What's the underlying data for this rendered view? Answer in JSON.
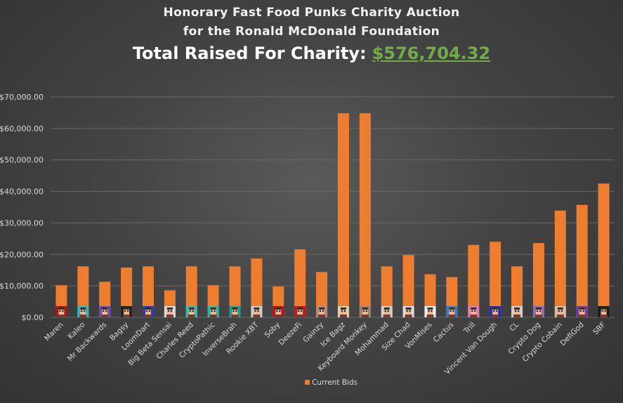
{
  "header": {
    "title_line1": "Honorary Fast Food Punks Charity Auction",
    "title_line2": "for the Ronald McDonald Foundation",
    "total_label": "Total Raised For Charity:",
    "total_amount": "$576,704.32"
  },
  "colors": {
    "bar": "#ed7d31",
    "total_amount": "#70ad47",
    "gridline": "#6a6a6a",
    "text": "#d9d9d9"
  },
  "chart_data": {
    "type": "bar",
    "categories": [
      "Maren",
      "Kaleo",
      "Mr Backwards",
      "Bagsy",
      "LoomDart",
      "Big Beta Sensai",
      "Charles Reed",
      "CryptoPathic",
      "InverseBrah",
      "Rookie XBT",
      "Soby",
      "DeezeFi",
      "Gainzy",
      "Ice Bagz",
      "Keyboard Monkey",
      "Mohammad",
      "Size Chad",
      "VonMises",
      "Cactus",
      "Trill",
      "Vincent Van Dough",
      "CL",
      "Crypto Dog",
      "Crypto Cobain",
      "DefiGod",
      "SBF"
    ],
    "series": [
      {
        "name": "Current Bids",
        "values": [
          10200,
          16200,
          11300,
          15800,
          16200,
          8600,
          16200,
          10200,
          16200,
          18700,
          9800,
          21600,
          14400,
          64800,
          64800,
          16200,
          19800,
          13700,
          12800,
          23000,
          24000,
          16200,
          23600,
          33900,
          35700,
          42500
        ]
      }
    ],
    "ylim": [
      0,
      70000
    ],
    "yticks": [
      "$0.00",
      "$10,000.00",
      "$20,000.00",
      "$30,000.00",
      "$40,000.00",
      "$50,000.00",
      "$60,000.00",
      "$70,000.00"
    ],
    "grid": true,
    "legend_position": "bottom",
    "icon_colors": [
      "#b01515",
      "#27b8c8",
      "#6a4bb0",
      "#222222",
      "#2b3ab0",
      "#d8d8d8",
      "#2bc0c0",
      "#2bb5a5",
      "#1c9c8c",
      "#cccccc",
      "#b51818",
      "#c01818",
      "#b08a78",
      "#dfcfb0",
      "#9a8070",
      "#cfcfcf",
      "#dcdcdc",
      "#eeeeee",
      "#3a7ac0",
      "#e07ac0",
      "#2a2ab8",
      "#d0d0d0",
      "#8a6ac0",
      "#d8c0a0",
      "#7a3aa0",
      "#1a1a1a"
    ]
  }
}
